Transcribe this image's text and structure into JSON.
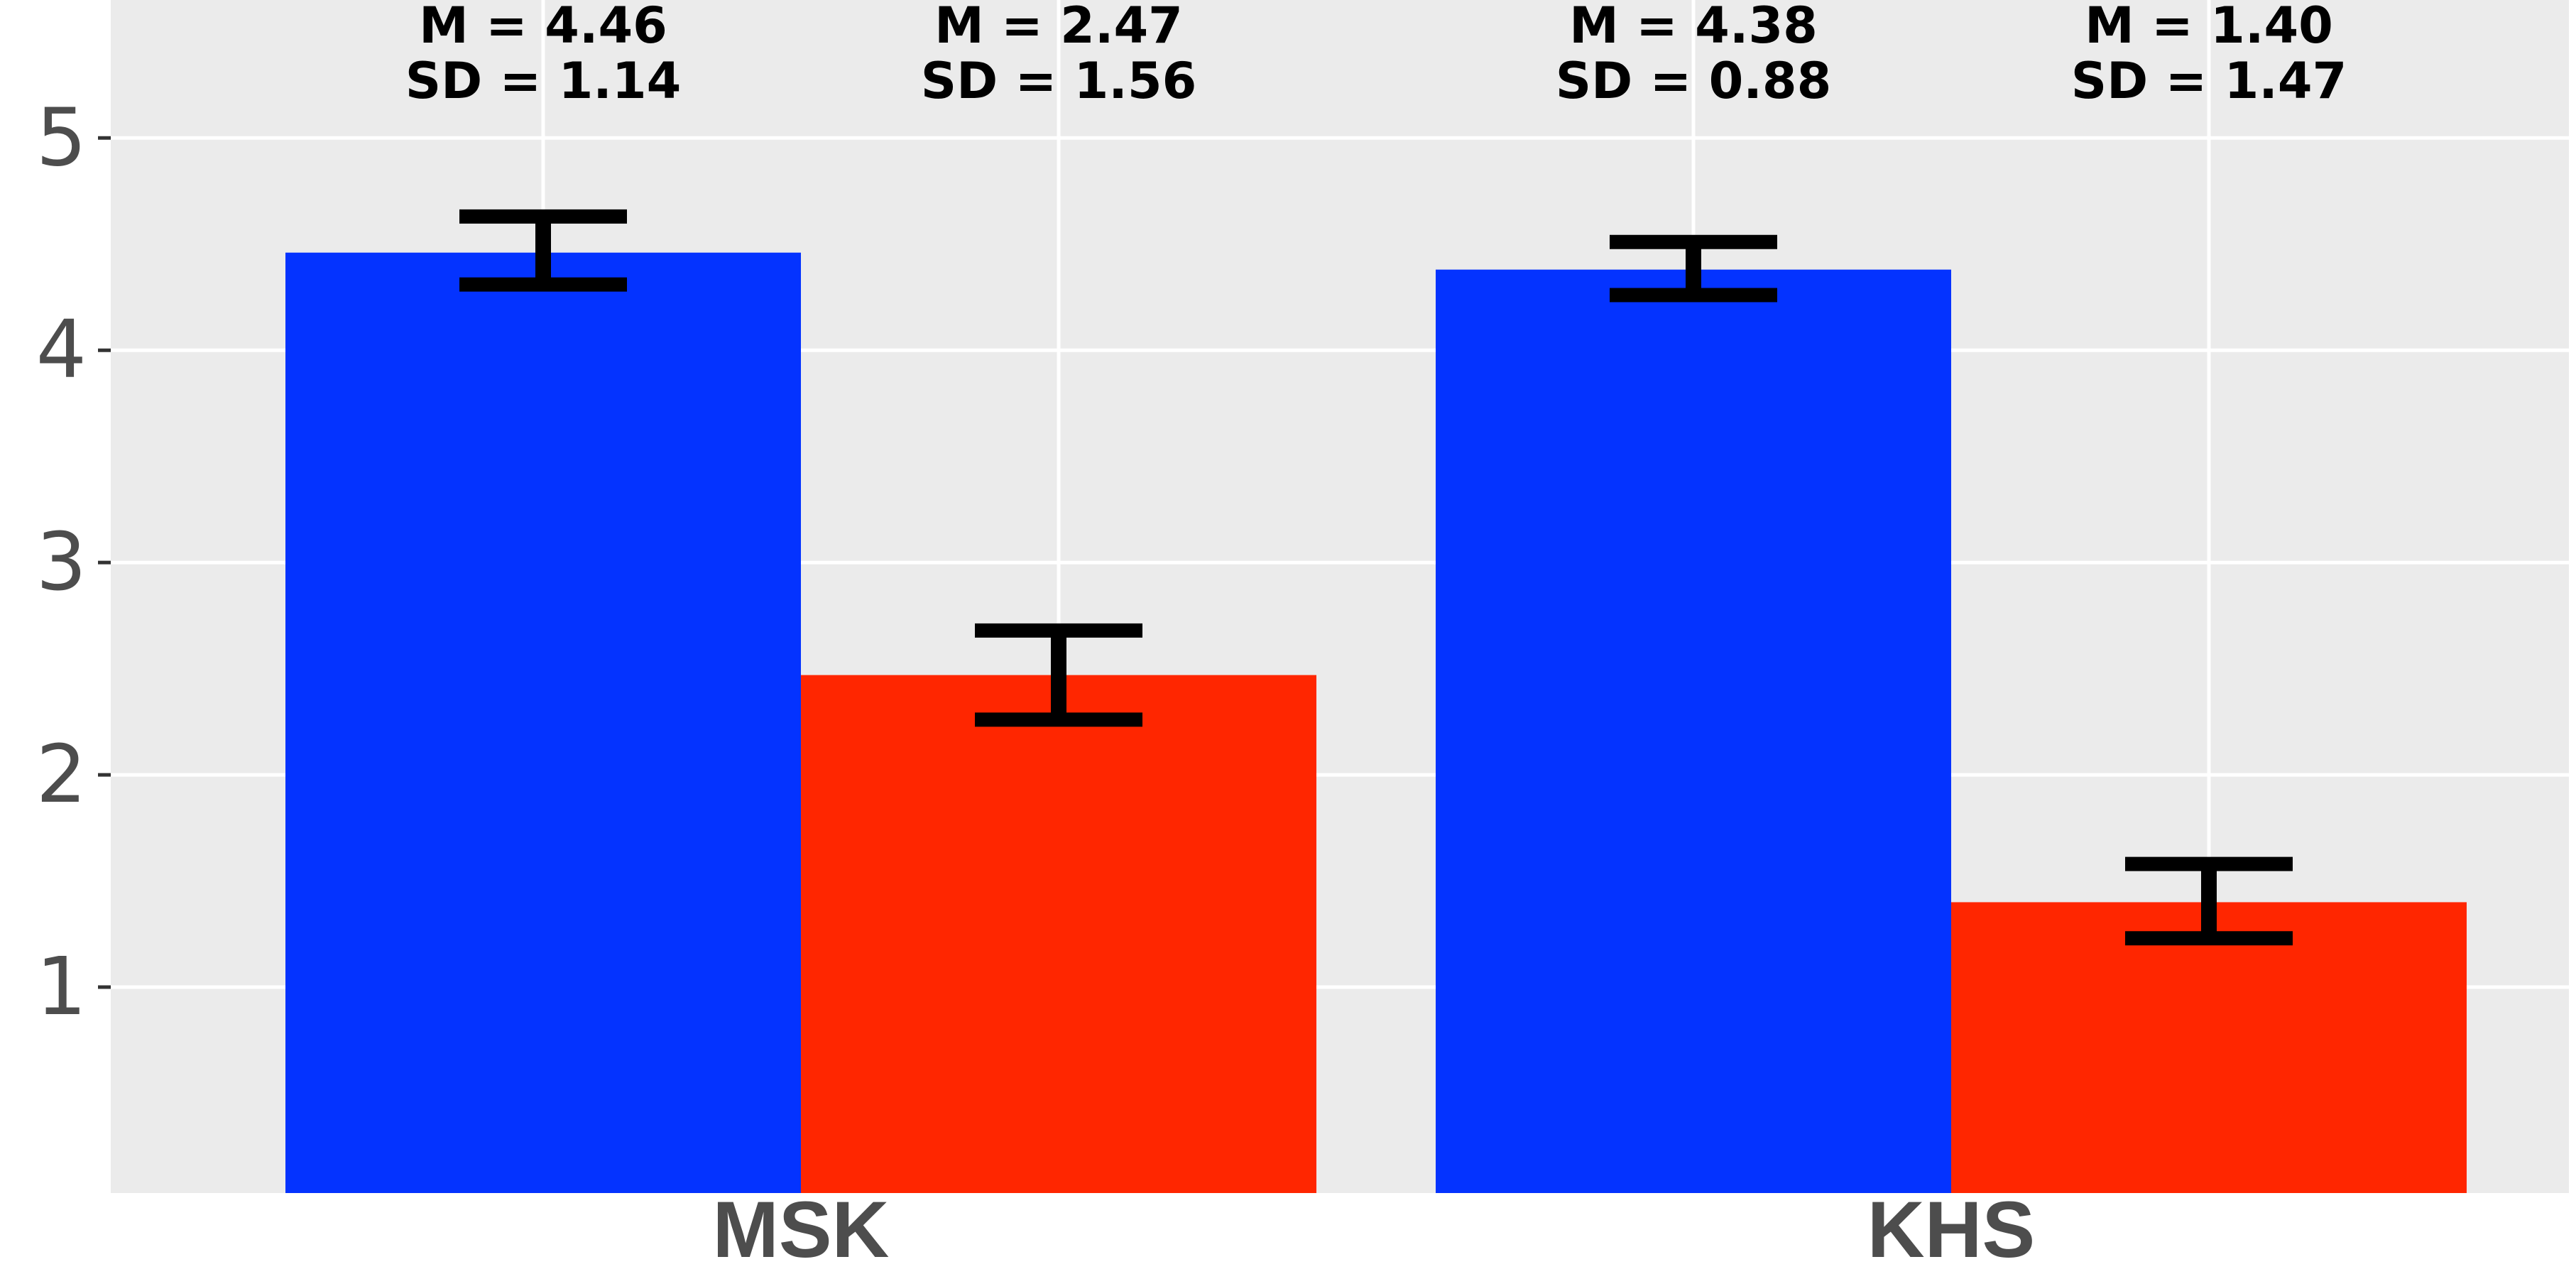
{
  "chart_data": {
    "type": "bar",
    "categories": [
      "MSK",
      "KHS"
    ],
    "series": [
      {
        "color": "#0433FF",
        "values": [
          4.46,
          4.38
        ]
      },
      {
        "color": "#FF2600",
        "values": [
          2.47,
          1.4
        ]
      }
    ],
    "error_bars": [
      [
        {
          "low": 4.31,
          "high": 4.63
        },
        {
          "low": 4.26,
          "high": 4.51
        }
      ],
      [
        {
          "low": 2.26,
          "high": 2.68
        },
        {
          "low": 1.23,
          "high": 1.58
        }
      ]
    ],
    "annotations": [
      [
        "M = 4.46",
        "SD = 1.14"
      ],
      [
        "M = 2.47",
        "SD = 1.56"
      ],
      [
        "M = 4.38",
        "SD = 0.88"
      ],
      [
        "M = 1.40",
        "SD = 1.47"
      ]
    ],
    "y_ticks": [
      "1",
      "2",
      "3",
      "4",
      "5"
    ],
    "ylim": [
      0.03,
      5.65
    ],
    "grid": true,
    "legend": "none",
    "panel_color": "#EBEBEB",
    "grid_color": "#FFFFFF",
    "text_color": "#4D4D4D",
    "error_bar_color": "#000000"
  }
}
